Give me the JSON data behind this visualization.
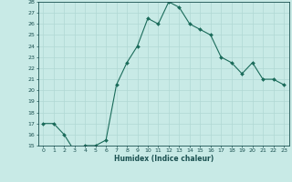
{
  "x": [
    0,
    1,
    2,
    3,
    4,
    5,
    6,
    7,
    8,
    9,
    10,
    11,
    12,
    13,
    14,
    15,
    16,
    17,
    18,
    19,
    20,
    21,
    22,
    23
  ],
  "y": [
    17,
    17,
    16,
    14.5,
    15,
    15,
    15.5,
    20.5,
    22.5,
    24,
    26.5,
    26,
    28,
    27.5,
    26,
    25.5,
    25,
    23,
    22.5,
    21.5,
    22.5,
    21,
    21,
    20.5
  ],
  "xlabel": "Humidex (Indice chaleur)",
  "xlim_min": -0.5,
  "xlim_max": 23.5,
  "ylim_min": 15,
  "ylim_max": 28,
  "yticks": [
    15,
    16,
    17,
    18,
    19,
    20,
    21,
    22,
    23,
    24,
    25,
    26,
    27,
    28
  ],
  "xticks": [
    0,
    1,
    2,
    3,
    4,
    5,
    6,
    7,
    8,
    9,
    10,
    11,
    12,
    13,
    14,
    15,
    16,
    17,
    18,
    19,
    20,
    21,
    22,
    23
  ],
  "line_color": "#1a6b5a",
  "marker_color": "#1a6b5a",
  "bg_color": "#c8eae6",
  "grid_color": "#b0d8d4",
  "text_color": "#1a5050"
}
